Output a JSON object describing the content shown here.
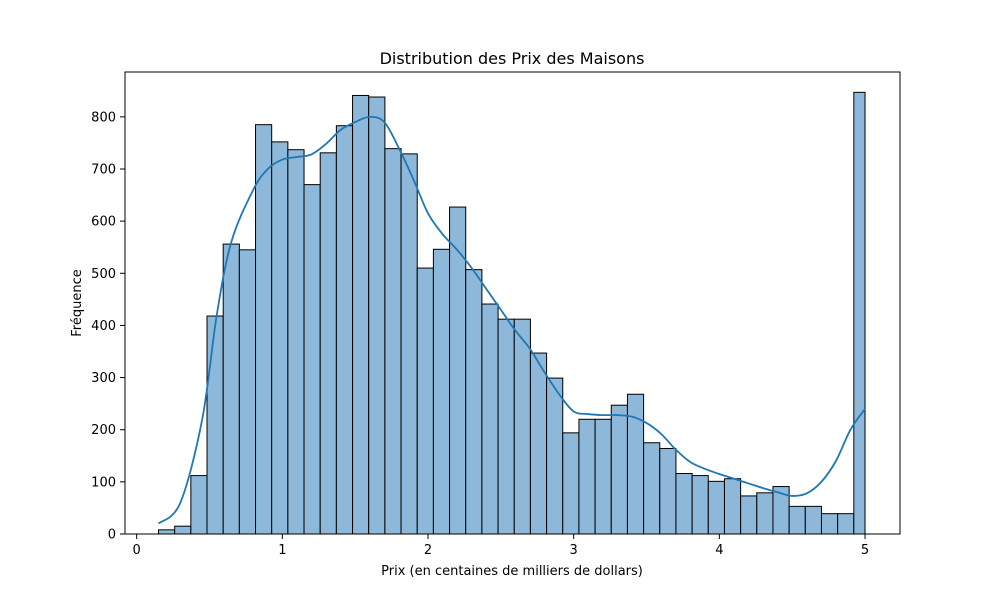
{
  "chart_data": {
    "type": "bar",
    "title": "Distribution des Prix des Maisons",
    "xlabel": "Prix (en centaines de milliers de dollars)",
    "ylabel": "Fréquence",
    "xlim": [
      -0.08,
      5.24
    ],
    "ylim": [
      0,
      886
    ],
    "x_ticks": [
      0,
      1,
      2,
      3,
      4,
      5
    ],
    "y_ticks": [
      0,
      100,
      200,
      300,
      400,
      500,
      600,
      700,
      800
    ],
    "grid": false,
    "legend": "none",
    "bin_edges": [
      0.15,
      0.261,
      0.372,
      0.483,
      0.594,
      0.705,
      0.816,
      0.927,
      1.038,
      1.149,
      1.26,
      1.371,
      1.482,
      1.593,
      1.704,
      1.815,
      1.926,
      2.037,
      2.148,
      2.259,
      2.37,
      2.481,
      2.592,
      2.703,
      2.814,
      2.925,
      3.036,
      3.147,
      3.258,
      3.369,
      3.48,
      3.591,
      3.702,
      3.813,
      3.924,
      4.035,
      4.146,
      4.257,
      4.368,
      4.479,
      4.59,
      4.701,
      4.812,
      4.923,
      5.0
    ],
    "values": [
      8,
      15,
      112,
      418,
      556,
      545,
      785,
      752,
      737,
      670,
      731,
      783,
      841,
      838,
      739,
      729,
      510,
      546,
      627,
      507,
      441,
      412,
      412,
      347,
      299,
      194,
      220,
      220,
      247,
      268,
      175,
      164,
      116,
      112,
      101,
      106,
      73,
      79,
      91,
      53,
      53,
      39,
      39,
      847
    ],
    "series": [
      {
        "type": "kde",
        "x": [
          0.15,
          0.3,
          0.45,
          0.55,
          0.65,
          0.8,
          0.9,
          1.0,
          1.1,
          1.2,
          1.3,
          1.4,
          1.5,
          1.6,
          1.7,
          1.8,
          1.9,
          2.0,
          2.1,
          2.2,
          2.3,
          2.4,
          2.5,
          2.6,
          2.7,
          2.8,
          2.9,
          3.0,
          3.1,
          3.2,
          3.3,
          3.4,
          3.5,
          3.6,
          3.7,
          3.8,
          3.9,
          4.0,
          4.1,
          4.2,
          4.3,
          4.4,
          4.5,
          4.6,
          4.7,
          4.8,
          4.9,
          5.0
        ],
        "y": [
          20,
          60,
          220,
          420,
          560,
          660,
          700,
          718,
          723,
          728,
          748,
          775,
          790,
          800,
          790,
          740,
          680,
          615,
          575,
          545,
          510,
          470,
          430,
          390,
          355,
          310,
          268,
          235,
          230,
          228,
          228,
          225,
          213,
          192,
          162,
          138,
          125,
          115,
          106,
          97,
          88,
          80,
          73,
          78,
          100,
          140,
          200,
          240
        ]
      }
    ]
  },
  "colors": {
    "bar_fill": "#8db8d9",
    "bar_edge": "#000000",
    "kde_line": "#1f77b4"
  }
}
